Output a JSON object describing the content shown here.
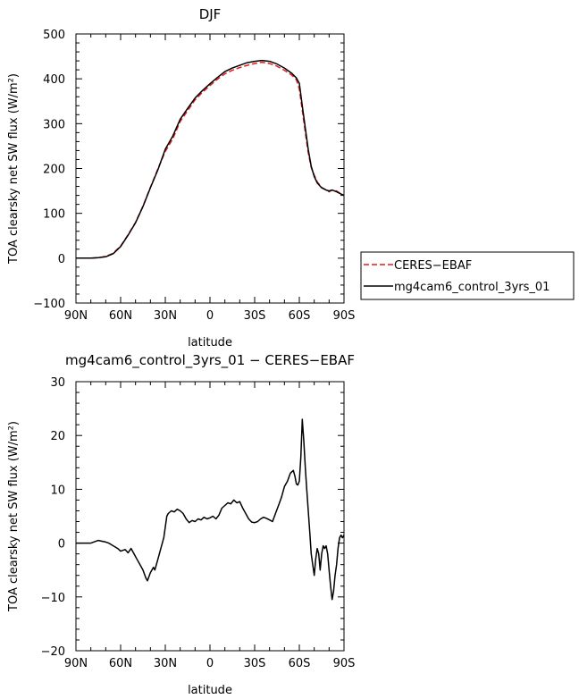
{
  "chart_data": [
    {
      "type": "line",
      "title": "DJF",
      "xlabel": "latitude",
      "ylabel": "TOA clearsky net SW flux (W/m²)",
      "xlim": [
        90,
        -90
      ],
      "ylim": [
        -100,
        500
      ],
      "x_tick_labels": [
        "90N",
        "60N",
        "30N",
        "0",
        "30S",
        "60S",
        "90S"
      ],
      "y_tick_labels": [
        "−100",
        "0",
        "100",
        "200",
        "300",
        "400",
        "500"
      ],
      "x_tick_values": [
        90,
        60,
        30,
        0,
        -30,
        -60,
        -90
      ],
      "y_tick_values": [
        -100,
        0,
        100,
        200,
        300,
        400,
        500
      ],
      "legend": {
        "placement": "right"
      },
      "series": [
        {
          "name": "CERES−EBAF",
          "color": "#e41a1c",
          "dash": true,
          "x": [
            90,
            80,
            75,
            70,
            65,
            60,
            55,
            50,
            45,
            40,
            35,
            30,
            25,
            20,
            15,
            10,
            5,
            0,
            -5,
            -10,
            -15,
            -20,
            -25,
            -30,
            -35,
            -40,
            -45,
            -50,
            -55,
            -58,
            -60,
            -62,
            -64,
            -66,
            -68,
            -70,
            -72,
            -75,
            -78,
            -80,
            -82,
            -85,
            -88,
            -90
          ],
          "y": [
            0,
            0,
            1,
            4,
            11,
            27,
            52,
            80,
            116,
            158,
            199,
            238,
            266,
            305,
            329,
            353,
            370,
            385,
            399,
            411,
            419,
            425,
            430,
            434,
            437,
            434,
            428,
            419,
            408,
            398,
            377,
            330,
            280,
            235,
            202,
            185,
            170,
            158,
            152,
            148,
            152,
            150,
            143,
            140
          ]
        },
        {
          "name": "mg4cam6_control_3yrs_01",
          "color": "#000000",
          "dash": false,
          "x": [
            90,
            80,
            75,
            70,
            65,
            60,
            55,
            50,
            45,
            40,
            35,
            30,
            25,
            20,
            15,
            10,
            5,
            0,
            -5,
            -10,
            -15,
            -20,
            -25,
            -30,
            -35,
            -40,
            -45,
            -50,
            -55,
            -58,
            -60,
            -62,
            -64,
            -66,
            -68,
            -70,
            -72,
            -75,
            -78,
            -80,
            -82,
            -85,
            -88,
            -90
          ],
          "y": [
            0,
            0,
            1,
            3,
            10,
            26,
            51,
            79,
            115,
            157,
            197,
            243,
            272,
            310,
            334,
            357,
            374,
            389,
            403,
            416,
            424,
            430,
            436,
            439,
            441,
            439,
            433,
            424,
            412,
            402,
            390,
            340,
            290,
            242,
            205,
            182,
            168,
            157,
            152,
            150,
            152,
            148,
            143,
            140
          ]
        }
      ]
    },
    {
      "type": "line",
      "title": "mg4cam6_control_3yrs_01 − CERES−EBAF",
      "xlabel": "latitude",
      "ylabel": "TOA clearsky net SW flux (W/m²)",
      "xlim": [
        90,
        -90
      ],
      "ylim": [
        -20,
        30
      ],
      "x_tick_labels": [
        "90N",
        "60N",
        "30N",
        "0",
        "30S",
        "60S",
        "90S"
      ],
      "y_tick_labels": [
        "−20",
        "−10",
        "0",
        "10",
        "20",
        "30"
      ],
      "x_tick_values": [
        90,
        60,
        30,
        0,
        -30,
        -60,
        -90
      ],
      "y_tick_values": [
        -20,
        -10,
        0,
        10,
        20,
        30
      ],
      "series": [
        {
          "color": "#000000",
          "x": [
            90,
            80,
            75,
            70,
            68,
            65,
            62,
            60,
            57,
            55,
            53,
            51,
            49,
            47,
            45,
            43,
            42,
            40,
            38,
            37,
            35,
            33,
            31,
            29,
            28,
            26,
            24,
            22,
            20,
            18,
            16,
            14,
            12,
            10,
            8,
            6,
            4,
            2,
            0,
            -2,
            -4,
            -6,
            -8,
            -10,
            -12,
            -14,
            -16,
            -18,
            -20,
            -22,
            -24,
            -26,
            -28,
            -30,
            -32,
            -34,
            -36,
            -38,
            -40,
            -42,
            -44,
            -46,
            -48,
            -50,
            -52,
            -54,
            -56,
            -57,
            -58,
            -59,
            -60,
            -61,
            -62,
            -63,
            -64,
            -65,
            -66,
            -67,
            -68,
            -69,
            -70,
            -71,
            -72,
            -73,
            -74,
            -75,
            -76,
            -77,
            -78,
            -79,
            -80,
            -81,
            -82,
            -83,
            -84,
            -85,
            -86,
            -87,
            -88,
            -89,
            -90
          ],
          "y": [
            0,
            0,
            0.5,
            0.2,
            0,
            -0.5,
            -1,
            -1.5,
            -1.2,
            -1.8,
            -1,
            -2,
            -3,
            -4,
            -5,
            -6.5,
            -7,
            -5.5,
            -4.5,
            -5,
            -3,
            -1,
            1,
            5,
            5.5,
            6,
            5.8,
            6.3,
            6,
            5.5,
            4.5,
            3.8,
            4.2,
            4,
            4.5,
            4.3,
            4.8,
            4.5,
            4.7,
            5,
            4.5,
            5.2,
            6.5,
            7,
            7.5,
            7.3,
            8,
            7.5,
            7.7,
            6.5,
            5.5,
            4.5,
            3.9,
            3.8,
            4,
            4.5,
            4.8,
            4.6,
            4.3,
            4,
            5.5,
            7,
            8.5,
            10.5,
            11.5,
            13,
            13.5,
            12.5,
            11,
            10.8,
            11.5,
            16,
            23,
            19,
            14,
            10,
            6,
            2,
            -2,
            -4,
            -6,
            -3,
            -1,
            -2,
            -5,
            -2,
            -0.5,
            -1,
            -0.5,
            -2,
            -5,
            -8,
            -10.5,
            -9,
            -6,
            -4,
            -1,
            1,
            1.5,
            1,
            1.5
          ]
        }
      ]
    }
  ]
}
